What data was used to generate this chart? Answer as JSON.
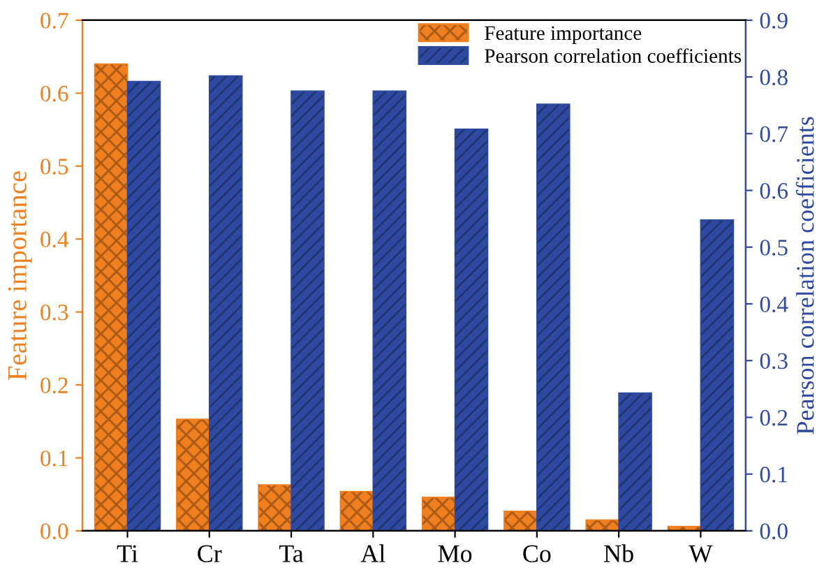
{
  "chart_data": {
    "type": "bar",
    "categories": [
      "Ti",
      "Cr",
      "Ta",
      "Al",
      "Mo",
      "Co",
      "Nb",
      "W"
    ],
    "ylabel": "Feature importance",
    "y2label": "Pearson correlation coefficients",
    "ylim": [
      0,
      0.7
    ],
    "yticks": [
      {
        "value": 0,
        "label": "0.0"
      },
      0.1,
      0.2,
      0.3,
      0.4,
      0.5,
      0.6,
      0.7
    ],
    "y2lim": [
      0,
      0.9
    ],
    "y2ticks": [
      {
        "value": 0,
        "label": "0.0"
      },
      0.1,
      0.2,
      0.3,
      0.4,
      0.5,
      0.6,
      0.7,
      0.8,
      0.9
    ],
    "legend": "top right",
    "grid": false,
    "series": [
      {
        "name": "Feature importance",
        "color": "#f07f20",
        "values": [
          0.64,
          0.153,
          0.063,
          0.054,
          0.046,
          0.027,
          0.015,
          0.006
        ]
      },
      {
        "name": "Pearson correlation coefficients",
        "color": "#2e4aa0",
        "axis": "y2",
        "values": [
          0.792,
          0.802,
          0.775,
          0.775,
          0.708,
          0.752,
          0.243,
          0.548
        ]
      }
    ]
  }
}
